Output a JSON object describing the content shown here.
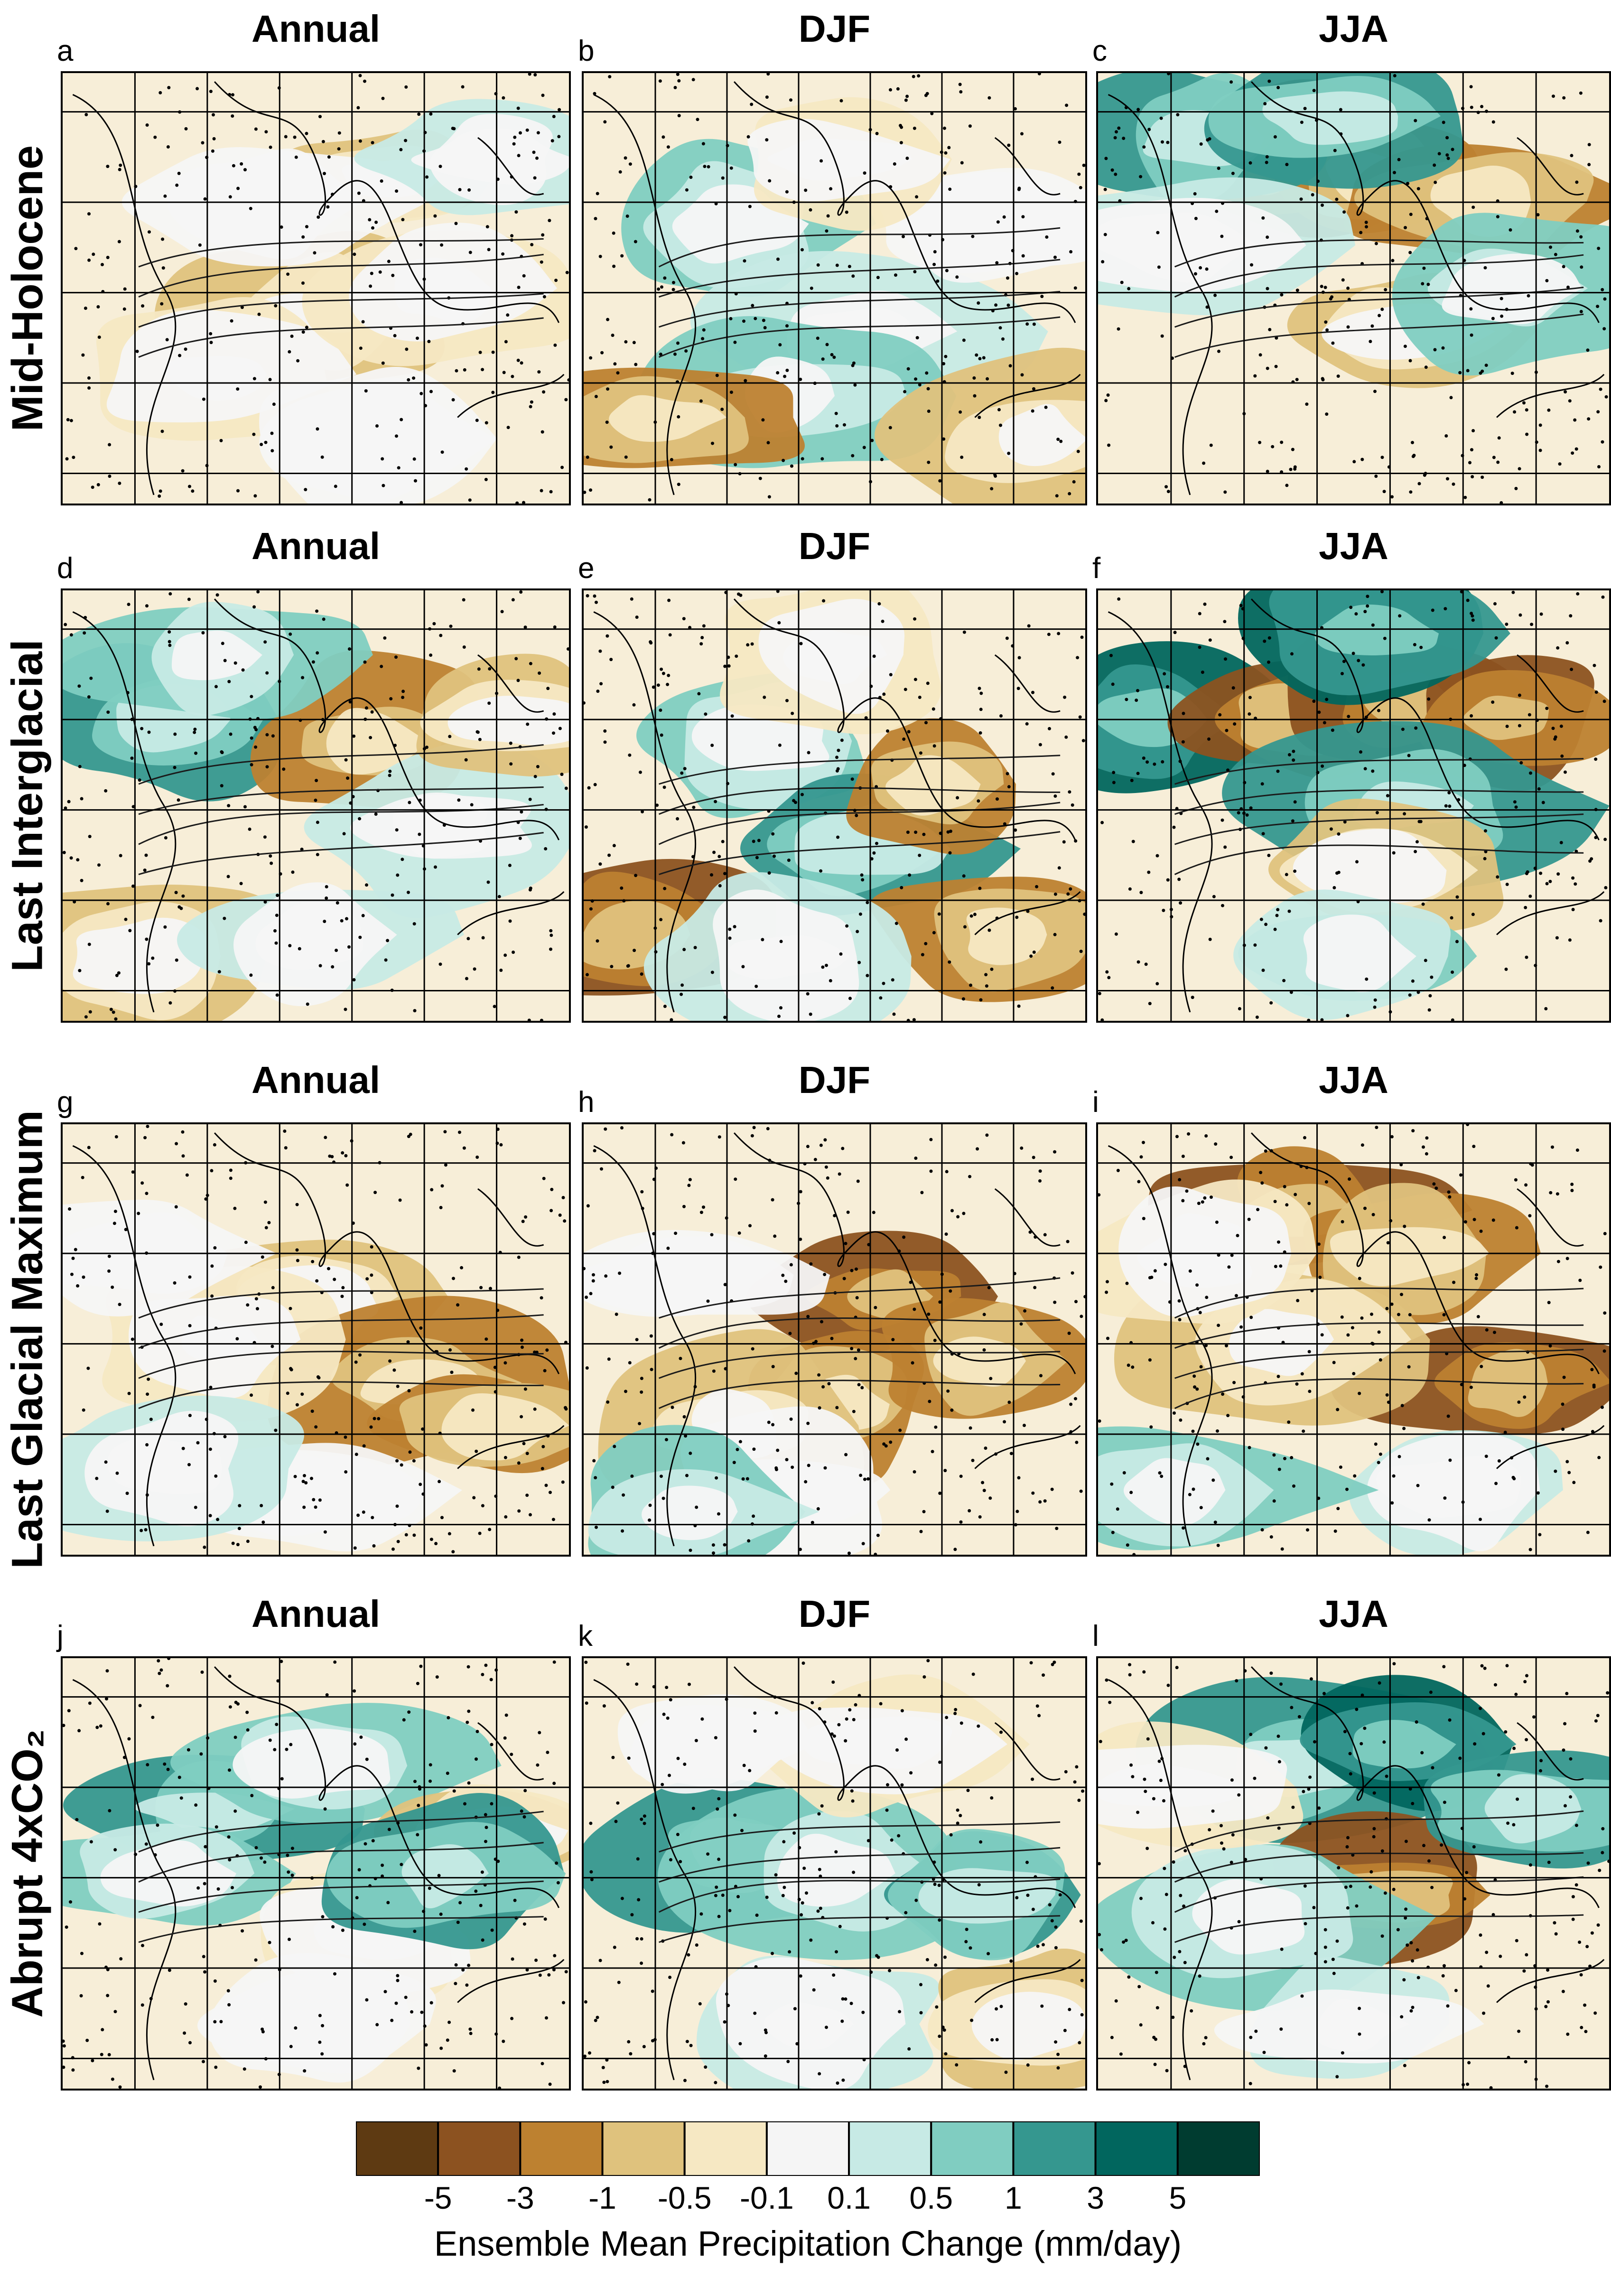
{
  "row_labels": [
    "Mid-Holocene",
    "Last Interglacial",
    "Last Glacial Maximum",
    "Abrupt 4xCO₂"
  ],
  "column_titles": [
    "Annual",
    "DJF",
    "JJA"
  ],
  "panel_letters": [
    "a",
    "b",
    "c",
    "d",
    "e",
    "f",
    "g",
    "h",
    "i",
    "j",
    "k",
    "l"
  ],
  "chart_data": {
    "type": "heatmap",
    "title": "",
    "panels": [
      {
        "letter": "a",
        "row": "Mid-Holocene",
        "season": "Annual"
      },
      {
        "letter": "b",
        "row": "Mid-Holocene",
        "season": "DJF"
      },
      {
        "letter": "c",
        "row": "Mid-Holocene",
        "season": "JJA"
      },
      {
        "letter": "d",
        "row": "Last Interglacial",
        "season": "Annual"
      },
      {
        "letter": "e",
        "row": "Last Interglacial",
        "season": "DJF"
      },
      {
        "letter": "f",
        "row": "Last Interglacial",
        "season": "JJA"
      },
      {
        "letter": "g",
        "row": "Last Glacial Maximum",
        "season": "Annual"
      },
      {
        "letter": "h",
        "row": "Last Glacial Maximum",
        "season": "DJF"
      },
      {
        "letter": "i",
        "row": "Last Glacial Maximum",
        "season": "JJA"
      },
      {
        "letter": "j",
        "row": "Abrupt 4xCO₂",
        "season": "Annual"
      },
      {
        "letter": "k",
        "row": "Abrupt 4xCO₂",
        "season": "DJF"
      },
      {
        "letter": "l",
        "row": "Abrupt 4xCO₂",
        "season": "JJA"
      }
    ],
    "colorbar": {
      "label": "Ensemble Mean Precipitation Change (mm/day)",
      "tick_labels": [
        "-5",
        "-3",
        "-1",
        "-0.5",
        "-0.1",
        "0.1",
        "0.5",
        "1",
        "3",
        "5"
      ],
      "colors": [
        "#5e3a12",
        "#8c5220",
        "#bd8130",
        "#dfc27d",
        "#f6e8c3",
        "#f5f5f5",
        "#c7eae5",
        "#80cdc1",
        "#35978f",
        "#01665e",
        "#003c30"
      ]
    }
  }
}
